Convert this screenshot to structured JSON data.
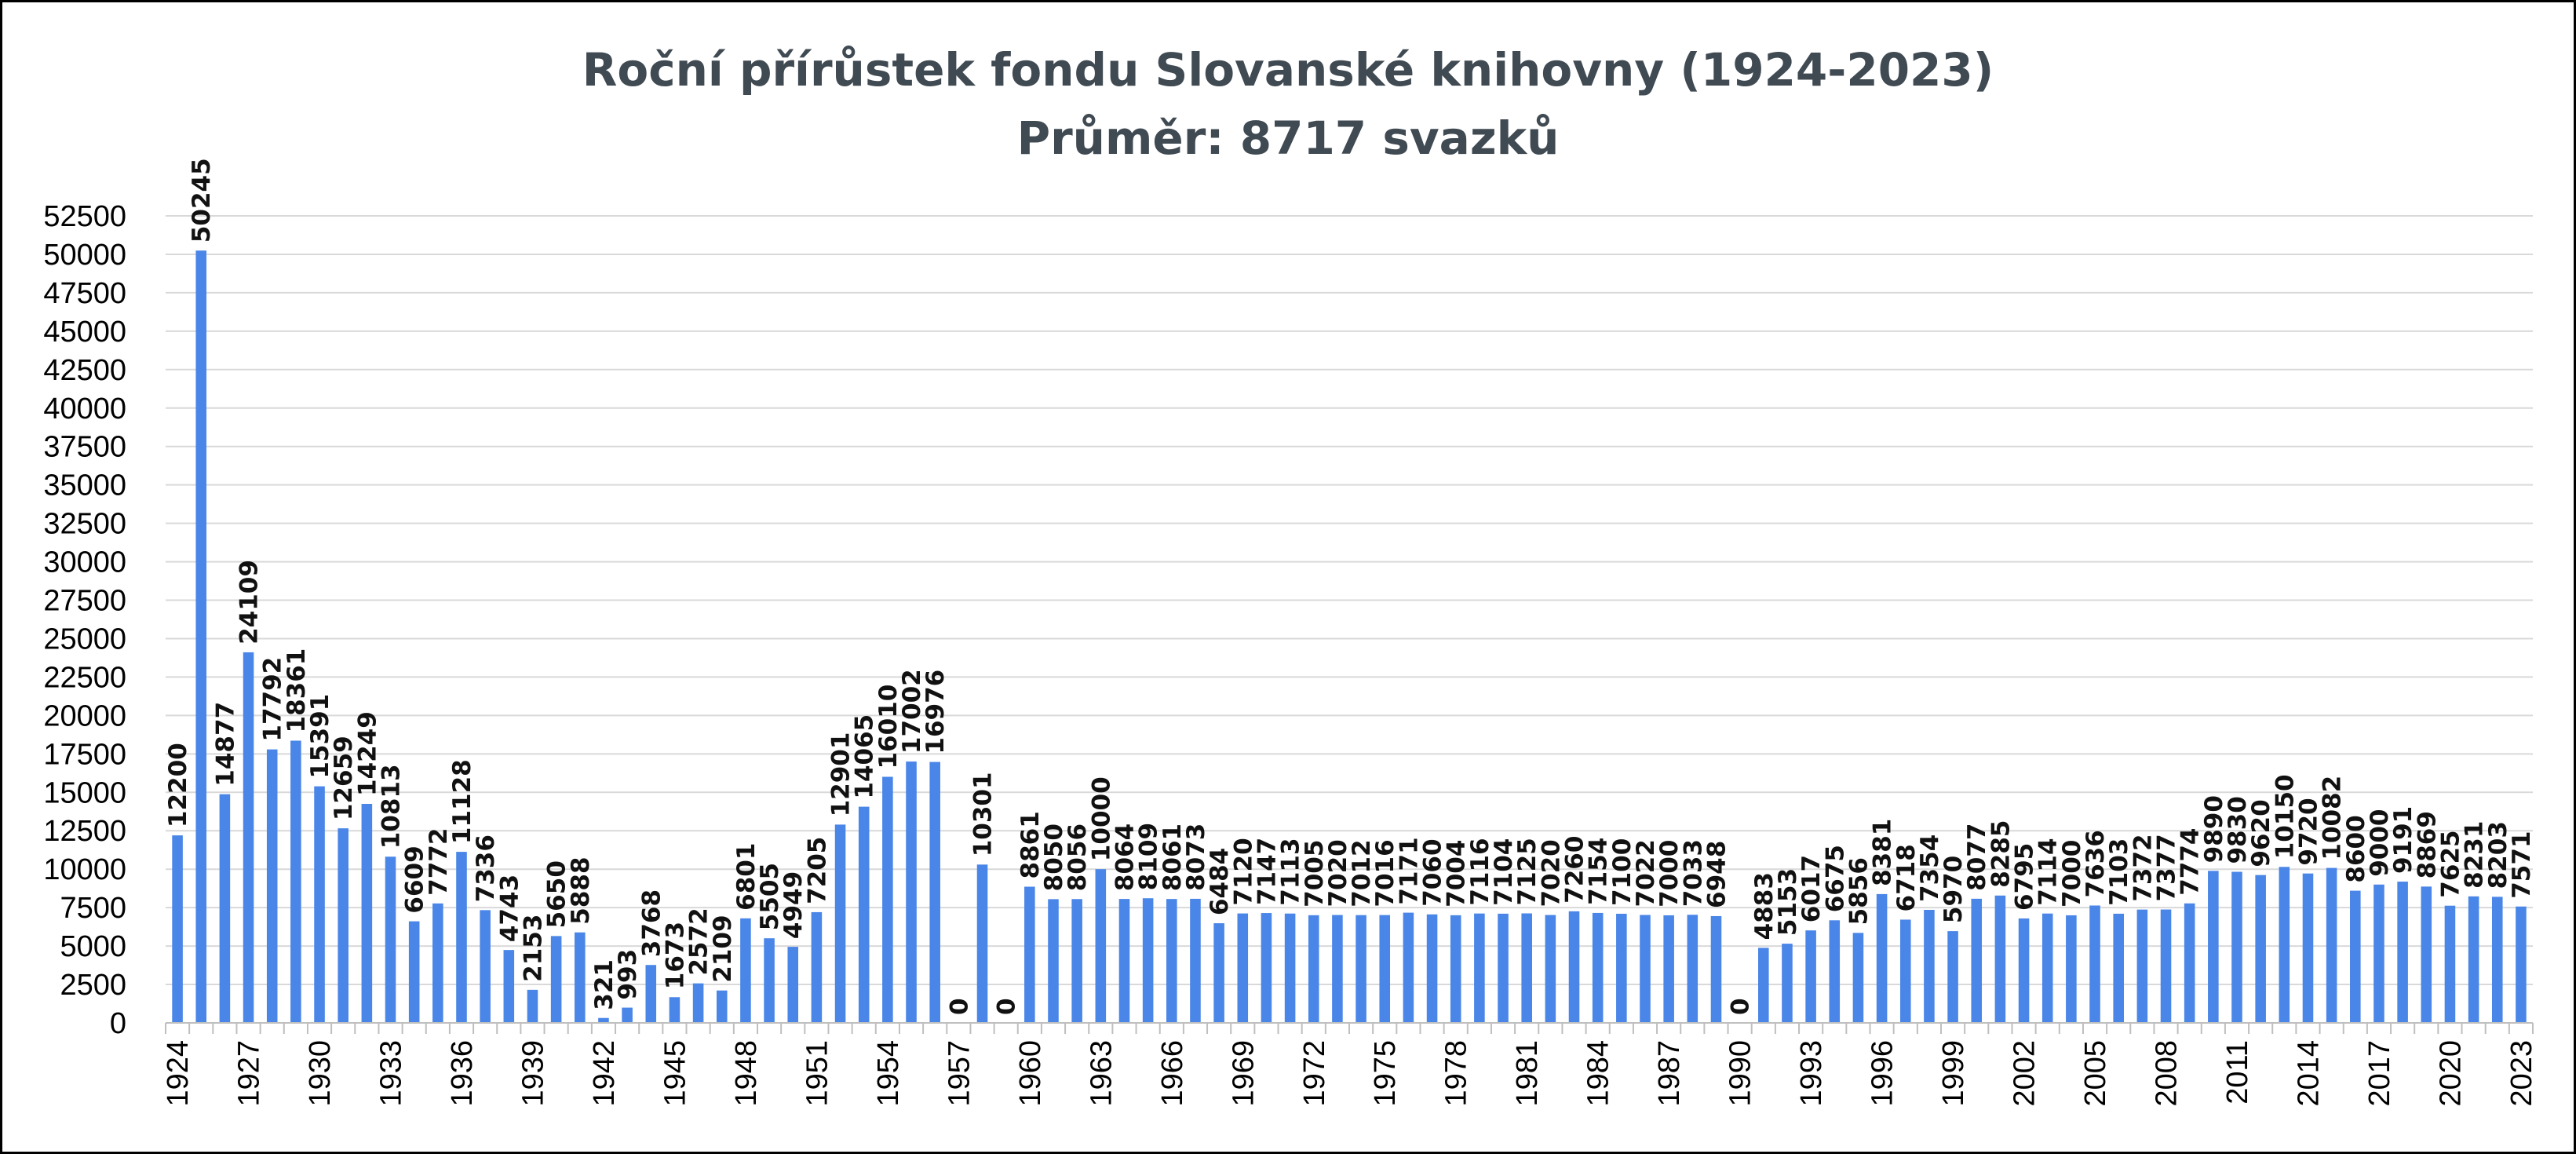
{
  "chart_data": {
    "type": "bar",
    "title": "Roční přírůstek fondu Slovanské knihovny (1924-2023)",
    "subtitle": "Průměr: 8717 svazků",
    "xlabel": "",
    "ylabel": "",
    "ylim": [
      0,
      52500
    ],
    "yticks": [
      0,
      2500,
      5000,
      7500,
      10000,
      12500,
      15000,
      17500,
      20000,
      22500,
      25000,
      27500,
      30000,
      32500,
      35000,
      37500,
      40000,
      42500,
      45000,
      47500,
      50000,
      52500
    ],
    "grid": true,
    "legend": "none",
    "bar_color": "#4a86e8",
    "categories": [
      1924,
      1925,
      1926,
      1927,
      1928,
      1929,
      1930,
      1931,
      1932,
      1933,
      1934,
      1935,
      1936,
      1937,
      1938,
      1939,
      1940,
      1941,
      1942,
      1943,
      1944,
      1945,
      1946,
      1947,
      1948,
      1949,
      1950,
      1951,
      1952,
      1953,
      1954,
      1955,
      1956,
      1957,
      1958,
      1959,
      1960,
      1961,
      1962,
      1963,
      1964,
      1965,
      1966,
      1967,
      1968,
      1969,
      1970,
      1971,
      1972,
      1973,
      1974,
      1975,
      1976,
      1977,
      1978,
      1979,
      1980,
      1981,
      1982,
      1983,
      1984,
      1985,
      1986,
      1987,
      1988,
      1989,
      1990,
      1991,
      1992,
      1993,
      1994,
      1995,
      1996,
      1997,
      1998,
      1999,
      2000,
      2001,
      2002,
      2003,
      2004,
      2005,
      2006,
      2007,
      2008,
      2009,
      2010,
      2011,
      2012,
      2013,
      2014,
      2015,
      2016,
      2017,
      2018,
      2019,
      2020,
      2021,
      2022,
      2023
    ],
    "values": [
      12200,
      50245,
      14877,
      24109,
      17792,
      18361,
      15391,
      12659,
      14249,
      10813,
      6609,
      7772,
      11128,
      7336,
      4743,
      2153,
      5650,
      5888,
      321,
      993,
      3768,
      1673,
      2572,
      2109,
      6801,
      5505,
      4949,
      7205,
      12901,
      14065,
      16010,
      17002,
      16976,
      0,
      10301,
      0,
      8861,
      8050,
      8056,
      10000,
      8064,
      8109,
      8061,
      8073,
      6484,
      7120,
      7147,
      7113,
      7005,
      7020,
      7012,
      7016,
      7171,
      7060,
      7004,
      7116,
      7104,
      7125,
      7020,
      7260,
      7154,
      7100,
      7022,
      7000,
      7033,
      6948,
      0,
      4883,
      5153,
      6017,
      6675,
      5856,
      8381,
      6718,
      7354,
      5970,
      8077,
      8285,
      6795,
      7114,
      7000,
      7636,
      7103,
      7372,
      7377,
      7774,
      9890,
      9830,
      9620,
      10150,
      9720,
      10082,
      8600,
      9000,
      9191,
      8869,
      7625,
      8231,
      8203,
      7571
    ],
    "xtick_labels": [
      "1924",
      "1927",
      "1930",
      "1933",
      "1936",
      "1939",
      "1942",
      "1945",
      "1948",
      "1951",
      "1954",
      "1957",
      "1960",
      "1963",
      "1966",
      "1969",
      "1972",
      "1975",
      "1978",
      "1981",
      "1984",
      "1987",
      "1990",
      "1993",
      "1996",
      "1999",
      "2002",
      "2005",
      "2008",
      "2011",
      "2014",
      "2017",
      "2020",
      "2023"
    ]
  }
}
